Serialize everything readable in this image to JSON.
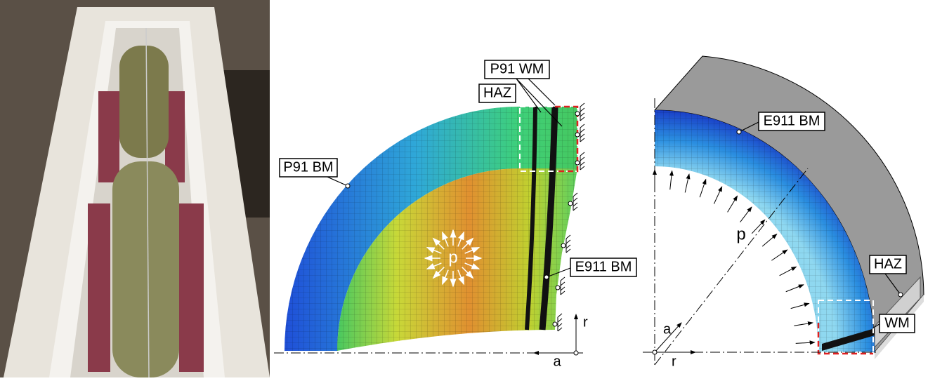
{
  "middle_panel": {
    "labels": {
      "weld_metal": "P91 WM",
      "haz": "HAZ",
      "base_metal_left": "P91 BM",
      "base_metal_right": "E911 BM",
      "pressure": "p",
      "radial_axis": "r",
      "axial_axis": "a"
    }
  },
  "right_panel": {
    "labels": {
      "base_metal": "E911 BM",
      "pressure": "p",
      "haz": "HAZ",
      "weld_metal": "WM",
      "axial_axis": "a",
      "radial_axis": "r"
    }
  }
}
